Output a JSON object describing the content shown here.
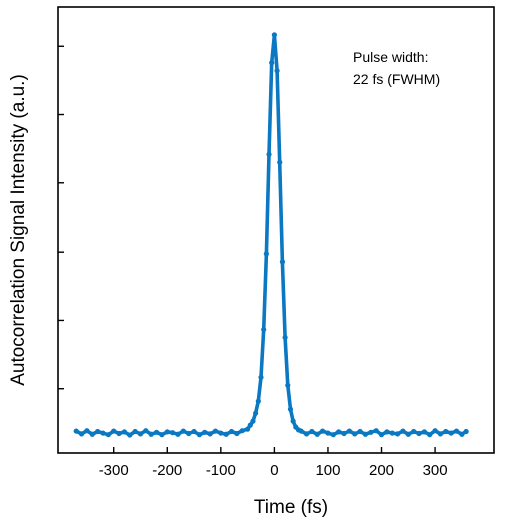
{
  "chart_data": {
    "type": "scatter",
    "title": "",
    "xlabel": "Time (fs)",
    "ylabel": "Autocorrelation Signal Intensity (a.u.)",
    "xlim": [
      -404,
      410
    ],
    "ylim": [
      -0.05,
      1.07
    ],
    "x_ticks": [
      -300,
      -200,
      -100,
      0,
      100,
      200,
      300
    ],
    "x_tick_labels": [
      "-300",
      "-200",
      "-100",
      "0",
      "100",
      "200",
      "300"
    ],
    "y_ticks": [
      0.1114,
      0.2829,
      0.4543,
      0.6286,
      0.8,
      0.9714
    ],
    "y_tick_labels": [],
    "color": "#0a78c2",
    "annotation": [
      "Pulse width:",
      "22 fs (FWHM)"
    ],
    "series": [
      {
        "x": [
          -370,
          -360,
          -350,
          -340,
          -330,
          -320,
          -310,
          -300,
          -290,
          -280,
          -270,
          -260,
          -250,
          -240,
          -230,
          -220,
          -210,
          -200,
          -190,
          -180,
          -170,
          -160,
          -150,
          -140,
          -130,
          -120,
          -110,
          -100,
          -90,
          -80,
          -70,
          -60,
          -50,
          -45,
          -40,
          -35,
          -30,
          -25,
          -20,
          -15,
          -10,
          -5,
          0,
          5,
          10,
          15,
          20,
          25,
          30,
          35,
          40,
          45,
          50,
          60,
          70,
          80,
          90,
          100,
          110,
          120,
          130,
          140,
          150,
          160,
          170,
          180,
          190,
          200,
          210,
          220,
          230,
          240,
          250,
          260,
          270,
          280,
          290,
          300,
          310,
          320,
          330,
          340,
          350,
          358
        ],
        "y": [
          0.005,
          -0.002,
          0.006,
          -0.003,
          0.004,
          0.0,
          -0.004,
          0.005,
          -0.001,
          0.003,
          -0.005,
          0.004,
          -0.002,
          0.006,
          -0.003,
          0.002,
          -0.004,
          0.003,
          0.001,
          -0.003,
          0.005,
          -0.001,
          0.004,
          -0.004,
          0.002,
          -0.002,
          0.005,
          0.0,
          -0.003,
          0.004,
          -0.001,
          0.006,
          0.01,
          0.02,
          0.03,
          0.05,
          0.08,
          0.14,
          0.26,
          0.45,
          0.7,
          0.93,
          1.0,
          0.91,
          0.68,
          0.43,
          0.24,
          0.12,
          0.06,
          0.03,
          0.015,
          0.008,
          0.005,
          -0.002,
          0.004,
          -0.003,
          0.005,
          0.0,
          -0.004,
          0.003,
          -0.001,
          0.005,
          -0.002,
          0.004,
          -0.003,
          0.002,
          0.006,
          -0.004,
          0.003,
          0.0,
          -0.002,
          0.005,
          -0.003,
          0.004,
          -0.001,
          0.003,
          -0.004,
          0.006,
          -0.002,
          0.004,
          0.0,
          0.005,
          -0.003,
          0.004
        ]
      }
    ]
  }
}
